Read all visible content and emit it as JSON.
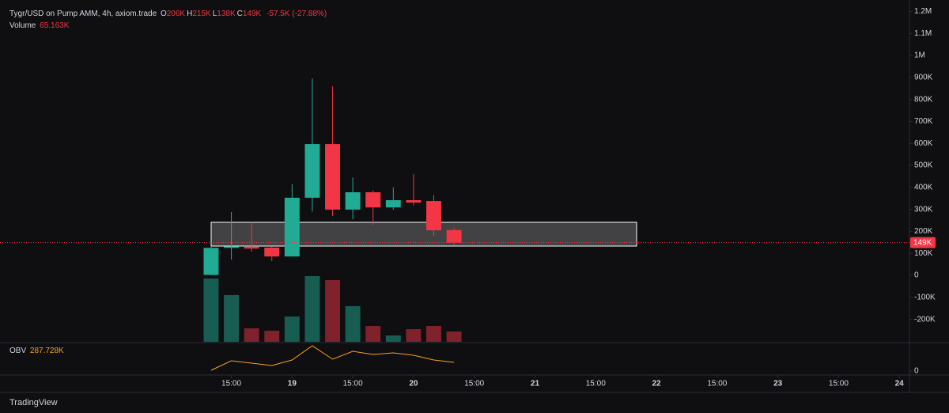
{
  "header": {
    "title": "Tygr/USD on Pump AMM, 4h, axiom.trade",
    "ohlc": [
      {
        "key": "O",
        "value": "206K"
      },
      {
        "key": "H",
        "value": "215K"
      },
      {
        "key": "L",
        "value": "138K"
      },
      {
        "key": "C",
        "value": "149K"
      }
    ],
    "change": "-57.5K (-27.88%)",
    "volume_name": "Volume",
    "volume_value": "65.163K",
    "obv_name": "OBV",
    "obv_value": "287.728K",
    "brand": "TradingView"
  },
  "chart_data": {
    "type": "candlestick",
    "categories": [
      null,
      null,
      null,
      null,
      null,
      null,
      null,
      null,
      null,
      null,
      null,
      null,
      null
    ],
    "open": [
      2000,
      125000,
      130000,
      126000,
      86000,
      353000,
      597000,
      299000,
      378000,
      309000,
      342000,
      338000,
      206000
    ],
    "high": [
      130000,
      288000,
      241000,
      130000,
      415000,
      895000,
      860000,
      445000,
      386000,
      400000,
      460000,
      365000,
      215000
    ],
    "low": [
      0,
      72000,
      108000,
      65000,
      86000,
      290000,
      270000,
      255000,
      230000,
      298000,
      318000,
      180000,
      138000
    ],
    "close": [
      125000,
      132000,
      122000,
      86000,
      353000,
      597000,
      299000,
      378000,
      309000,
      342000,
      331000,
      205000,
      149000
    ],
    "up_color": "#22ab94",
    "down_color": "#f23645",
    "ylim": [
      -302000,
      1252000
    ],
    "yticks": [
      {
        "value": 1200000,
        "label": "1.2M"
      },
      {
        "value": 1100000,
        "label": "1.1M"
      },
      {
        "value": 1000000,
        "label": "1M"
      },
      {
        "value": 900000,
        "label": "900K"
      },
      {
        "value": 800000,
        "label": "800K"
      },
      {
        "value": 700000,
        "label": "700K"
      },
      {
        "value": 600000,
        "label": "600K"
      },
      {
        "value": 500000,
        "label": "500K"
      },
      {
        "value": 400000,
        "label": "400K"
      },
      {
        "value": 300000,
        "label": "300K"
      },
      {
        "value": 200000,
        "label": "200K"
      },
      {
        "value": 100000,
        "label": "100K"
      },
      0,
      {
        "value": -100000,
        "label": "-100K"
      },
      {
        "value": -200000,
        "label": "-200K"
      }
    ],
    "current_price": {
      "value": 149000,
      "label": "149K"
    },
    "xlim": [
      -10.43,
      34.5
    ],
    "xticks": [
      {
        "value": 1,
        "label": "15:00"
      },
      {
        "value": 4,
        "label": "19"
      },
      {
        "value": 7,
        "label": "15:00"
      },
      {
        "value": 10,
        "label": "20"
      },
      {
        "value": 13,
        "label": "15:00"
      },
      {
        "value": 16,
        "label": "21"
      },
      {
        "value": 19,
        "label": "15:00"
      },
      {
        "value": 22,
        "label": "22"
      },
      {
        "value": 25,
        "label": "15:00"
      },
      {
        "value": 28,
        "label": "23"
      },
      {
        "value": 31,
        "label": "15:00"
      },
      {
        "value": 34,
        "label": "24"
      }
    ],
    "volume": {
      "values": [
        401000,
        296000,
        85000,
        70000,
        160000,
        416000,
        391000,
        226000,
        100000,
        40000,
        80000,
        100000,
        65163
      ]
    },
    "obv": {
      "color": "#f7a21b",
      "values": [
        26000,
        340000,
        262000,
        183000,
        366000,
        837000,
        392000,
        654000,
        549000,
        601000,
        523000,
        366000,
        287728
      ],
      "ylim": [
        -131000,
        915000
      ],
      "yticks": [
        0
      ]
    }
  }
}
